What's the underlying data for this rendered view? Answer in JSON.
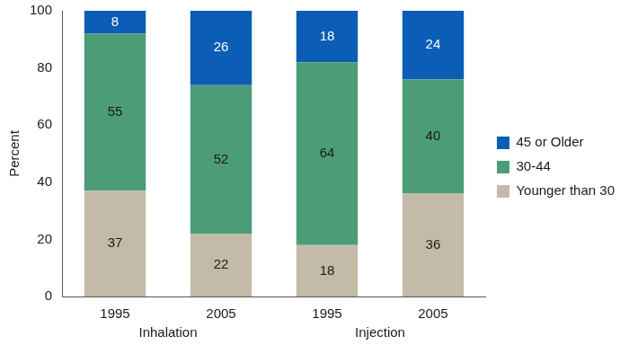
{
  "chart_data": {
    "type": "bar",
    "stacked": true,
    "y_label": "Percent",
    "categories": [
      "1995",
      "2005",
      "1995",
      "2005"
    ],
    "groups": [
      "Inhalation",
      "Inhalation",
      "Injection",
      "Injection"
    ],
    "series": [
      {
        "name": "Younger than 30",
        "color": "#c3bba8",
        "values": [
          37,
          22,
          18,
          36
        ]
      },
      {
        "name": "30-44",
        "color": "#4c9c78",
        "values": [
          55,
          52,
          64,
          40
        ]
      },
      {
        "name": "45 or Older",
        "color": "#0b5db5",
        "values": [
          8,
          26,
          18,
          24
        ]
      }
    ],
    "ylim": [
      0,
      100
    ],
    "yticks": [
      0,
      20,
      40,
      60,
      80,
      100
    ],
    "grid": false,
    "legend": "right",
    "data_labels": true
  }
}
